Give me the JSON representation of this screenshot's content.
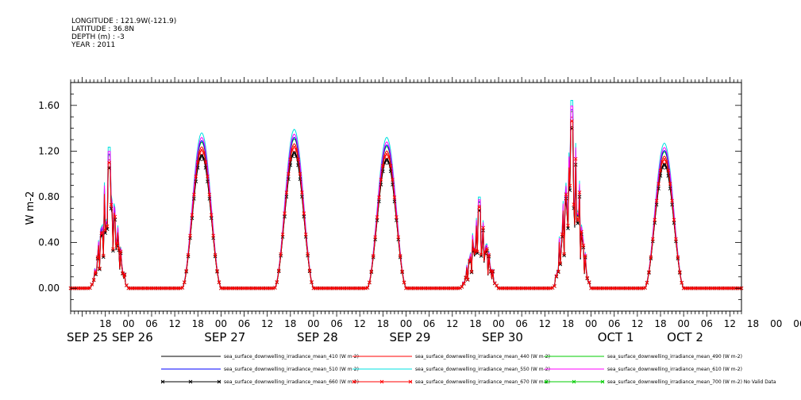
{
  "header": {
    "longitude": "LONGITUDE : 121.9W(-121.9)",
    "latitude": "LATITUDE : 36.8N",
    "depth": "DEPTH (m) : -3",
    "year": "YEAR : 2011"
  },
  "chart_data": {
    "type": "line",
    "ylabel": "W m-2",
    "xlabel": "",
    "ylim": [
      -0.2,
      1.8
    ],
    "xlim_hours": [
      "2011-09-25T09:00",
      "2011-10-02T15:00"
    ],
    "yticks": [
      "0.00",
      "0.40",
      "0.80",
      "1.20",
      "1.60"
    ],
    "xtick_hour_labels": [
      "18",
      "00",
      "06",
      "12",
      "18",
      "00",
      "06",
      "12",
      "18",
      "00",
      "06",
      "12",
      "18",
      "00",
      "06",
      "12",
      "18",
      "00",
      "06",
      "12",
      "18",
      "00",
      "06",
      "12",
      "18",
      "00",
      "06",
      "12",
      "18",
      "00",
      "06",
      "12"
    ],
    "day_labels": [
      "SEP 25",
      "SEP 26",
      "SEP 27",
      "SEP 28",
      "SEP 29",
      "SEP 30",
      "OCT  1",
      "OCT  2"
    ],
    "grid": false,
    "legend_position": "bottom",
    "series": [
      {
        "name": "sea_surface_downwelling_irradiance_mean_410 (W m-2)",
        "color": "#000000",
        "scale": 0.86
      },
      {
        "name": "sea_surface_downwelling_irradiance_mean_440 (W m-2)",
        "color": "#ff0000",
        "scale": 0.91
      },
      {
        "name": "sea_surface_downwelling_irradiance_mean_490 (W m-2)",
        "color": "#00cc00",
        "scale": 0.94
      },
      {
        "name": "sea_surface_downwelling_irradiance_mean_510 (W m-2)",
        "color": "#0000ff",
        "scale": 0.95
      },
      {
        "name": "sea_surface_downwelling_irradiance_mean_550 (W m-2)",
        "color": "#00e0e0",
        "scale": 1.0
      },
      {
        "name": "sea_surface_downwelling_irradiance_mean_610 (W m-2)",
        "color": "#ff00ff",
        "scale": 0.97
      },
      {
        "name": "sea_surface_downwelling_irradiance_mean_660 (W m-2)",
        "color": "#000000",
        "scale": 0.85,
        "marker": "x"
      },
      {
        "name": "sea_surface_downwelling_irradiance_mean_670 (W m-2)",
        "color": "#ff0000",
        "scale": 0.89,
        "marker": "x"
      },
      {
        "name": "sea_surface_downwelling_irradiance_mean_700 (W m-2) No Valid Data",
        "color": "#00cc00",
        "scale": 0,
        "marker": "x"
      }
    ],
    "daily_peaks_550": [
      {
        "day": "SEP 25",
        "peak": 1.3,
        "noon_hour": 19,
        "cloudy": true
      },
      {
        "day": "SEP 26",
        "peak": 1.36,
        "noon_hour": 19
      },
      {
        "day": "SEP 27",
        "peak": 1.39,
        "noon_hour": 19
      },
      {
        "day": "SEP 28",
        "peak": 1.32,
        "noon_hour": 19
      },
      {
        "day": "SEP 29",
        "peak": 0.84,
        "noon_hour": 19,
        "cloudy": true
      },
      {
        "day": "SEP 30",
        "peak": 1.73,
        "noon_hour": 19,
        "cloudy": true
      },
      {
        "day": "OCT  1",
        "peak": 1.27,
        "noon_hour": 19
      }
    ]
  }
}
